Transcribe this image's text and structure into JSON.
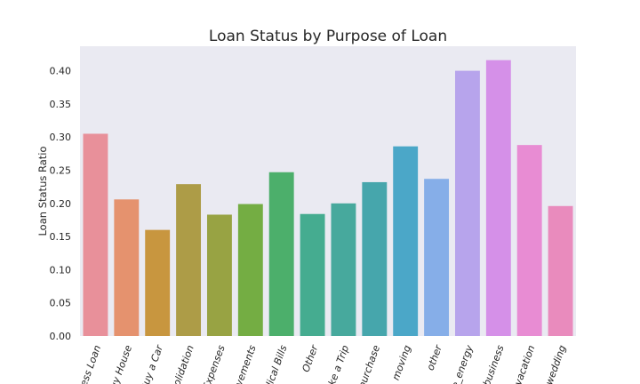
{
  "chart_data": {
    "type": "bar",
    "title": "Loan Status by Purpose of Loan",
    "xlabel": "",
    "ylabel": "Loan Status Ratio",
    "ylim": [
      0,
      0.44
    ],
    "yticks": [
      "0.00",
      "0.05",
      "0.10",
      "0.15",
      "0.20",
      "0.25",
      "0.30",
      "0.35",
      "0.40"
    ],
    "grid": false,
    "categories": [
      "ess Loan",
      "uy House",
      "Buy a Car",
      "solidation",
      "Expenses",
      "ovements",
      "dical Bills",
      "Other",
      "ke a Trip",
      "purchase",
      "moving",
      "other",
      "e_energy",
      "business",
      "vacation",
      "wedding"
    ],
    "values": [
      0.305,
      0.206,
      0.16,
      0.229,
      0.183,
      0.199,
      0.247,
      0.184,
      0.2,
      0.232,
      0.286,
      0.237,
      0.4,
      0.416,
      0.288,
      0.196
    ],
    "colors": [
      "#e8909a",
      "#e5926e",
      "#c8963f",
      "#ad9c47",
      "#98a343",
      "#74ad43",
      "#4caf6b",
      "#45ac90",
      "#47a99d",
      "#46a6ac",
      "#4ba7c8",
      "#86aee8",
      "#b7a4ec",
      "#d590e8",
      "#e88cd3",
      "#e98bbd"
    ]
  }
}
